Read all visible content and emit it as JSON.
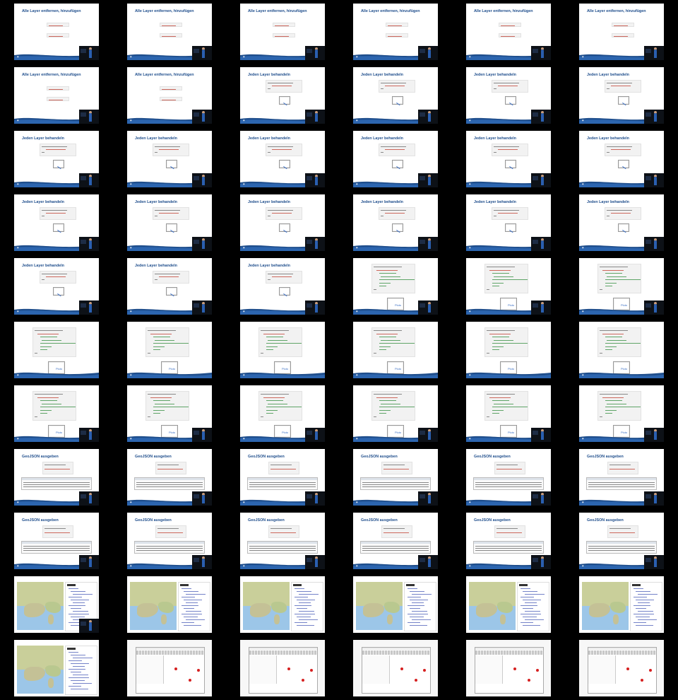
{
  "sheet": {
    "columns": 6,
    "rows": 11,
    "background": "#000000",
    "accent": "#1f4e8c"
  },
  "titles": {
    "layer_remove": "Alle Layer entfernen, hinzufügen",
    "layer_each": "Jeden Layer behandeln",
    "geojson": "GeoJSON ausgeben"
  },
  "labels": {
    "pluto": "Pluto"
  },
  "tiles": [
    {
      "kind": "remove",
      "title": "layer_remove",
      "video": true
    },
    {
      "kind": "remove",
      "title": "layer_remove",
      "video": true
    },
    {
      "kind": "remove",
      "title": "layer_remove",
      "video": true
    },
    {
      "kind": "remove",
      "title": "layer_remove",
      "video": true
    },
    {
      "kind": "remove",
      "title": "layer_remove",
      "video": true
    },
    {
      "kind": "remove",
      "title": "layer_remove",
      "video": true
    },
    {
      "kind": "remove",
      "title": "layer_remove",
      "video": true
    },
    {
      "kind": "remove",
      "title": "layer_remove",
      "video": true
    },
    {
      "kind": "each",
      "title": "layer_each",
      "video": true
    },
    {
      "kind": "each",
      "title": "layer_each",
      "video": true
    },
    {
      "kind": "each",
      "title": "layer_each",
      "video": true
    },
    {
      "kind": "each",
      "title": "layer_each",
      "video": true
    },
    {
      "kind": "each",
      "title": "layer_each",
      "video": true
    },
    {
      "kind": "each",
      "title": "layer_each",
      "video": true
    },
    {
      "kind": "each",
      "title": "layer_each",
      "video": true
    },
    {
      "kind": "each",
      "title": "layer_each",
      "video": true
    },
    {
      "kind": "each",
      "title": "layer_each",
      "video": true
    },
    {
      "kind": "each",
      "title": "layer_each",
      "video": true
    },
    {
      "kind": "each",
      "title": "layer_each",
      "video": true
    },
    {
      "kind": "each",
      "title": "layer_each",
      "video": true
    },
    {
      "kind": "each",
      "title": "layer_each",
      "video": true
    },
    {
      "kind": "each",
      "title": "layer_each",
      "video": true
    },
    {
      "kind": "each",
      "title": "layer_each",
      "video": true
    },
    {
      "kind": "each",
      "title": "layer_each",
      "video": true
    },
    {
      "kind": "each",
      "title": "layer_each",
      "video": true
    },
    {
      "kind": "each",
      "title": "layer_each",
      "video": true
    },
    {
      "kind": "each",
      "title": "layer_each",
      "video": true
    },
    {
      "kind": "popup",
      "title": "",
      "video": true
    },
    {
      "kind": "popup",
      "title": "",
      "video": true
    },
    {
      "kind": "popup",
      "title": "",
      "video": true
    },
    {
      "kind": "popup",
      "title": "",
      "video": false
    },
    {
      "kind": "popup",
      "title": "",
      "video": false
    },
    {
      "kind": "popup",
      "title": "",
      "video": false
    },
    {
      "kind": "popup",
      "title": "",
      "video": false
    },
    {
      "kind": "popup",
      "title": "",
      "video": false
    },
    {
      "kind": "popup",
      "title": "",
      "video": false
    },
    {
      "kind": "popup",
      "title": "",
      "video": true
    },
    {
      "kind": "popup",
      "title": "",
      "video": true
    },
    {
      "kind": "popup",
      "title": "",
      "video": true
    },
    {
      "kind": "popup",
      "title": "",
      "video": true
    },
    {
      "kind": "popup",
      "title": "",
      "video": true
    },
    {
      "kind": "popup",
      "title": "",
      "video": true
    },
    {
      "kind": "geojson",
      "title": "geojson",
      "video": true
    },
    {
      "kind": "geojson",
      "title": "geojson",
      "video": true
    },
    {
      "kind": "geojson",
      "title": "geojson",
      "video": true
    },
    {
      "kind": "geojson",
      "title": "geojson",
      "video": true
    },
    {
      "kind": "geojson",
      "title": "geojson",
      "video": true
    },
    {
      "kind": "geojson",
      "title": "geojson",
      "video": true
    },
    {
      "kind": "geojson",
      "title": "geojson",
      "video": true
    },
    {
      "kind": "geojson",
      "title": "geojson",
      "video": true
    },
    {
      "kind": "geojson",
      "title": "geojson",
      "video": true
    },
    {
      "kind": "geojson",
      "title": "geojson",
      "video": true
    },
    {
      "kind": "geojson",
      "title": "geojson",
      "video": true
    },
    {
      "kind": "geojson",
      "title": "geojson",
      "video": true
    },
    {
      "kind": "map",
      "title": "",
      "video": true
    },
    {
      "kind": "map",
      "title": "",
      "video": false
    },
    {
      "kind": "map",
      "title": "",
      "video": false
    },
    {
      "kind": "map",
      "title": "",
      "video": false
    },
    {
      "kind": "map",
      "title": "",
      "video": false
    },
    {
      "kind": "map",
      "title": "",
      "video": false
    },
    {
      "kind": "map",
      "title": "",
      "video": false
    },
    {
      "kind": "desktop",
      "title": "",
      "video": false
    },
    {
      "kind": "desktop",
      "title": "",
      "video": false
    },
    {
      "kind": "desktop",
      "title": "",
      "video": false
    },
    {
      "kind": "desktop",
      "title": "",
      "video": false
    },
    {
      "kind": "desktop",
      "title": "",
      "video": false
    }
  ]
}
